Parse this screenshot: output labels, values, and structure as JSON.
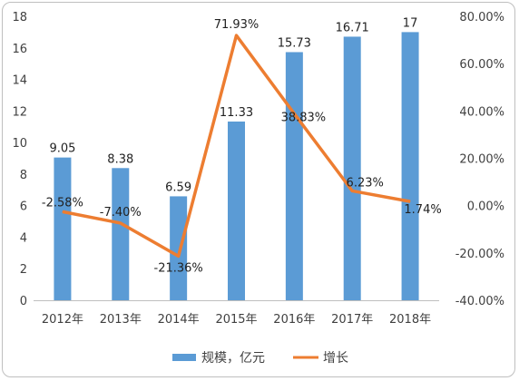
{
  "chart_data": {
    "type": "bar+line",
    "categories": [
      "2012年",
      "2013年",
      "2014年",
      "2015年",
      "2016年",
      "2017年",
      "2018年"
    ],
    "series": [
      {
        "name": "规模，亿元",
        "type": "bar",
        "axis": "left",
        "color": "#5b9bd5",
        "values": [
          9.05,
          8.38,
          6.59,
          11.33,
          15.73,
          16.71,
          17
        ],
        "labels": [
          "9.05",
          "8.38",
          "6.59",
          "11.33",
          "15.73",
          "16.71",
          "17"
        ]
      },
      {
        "name": "增长",
        "type": "line",
        "axis": "right",
        "color": "#ed7d31",
        "values": [
          -2.58,
          -7.4,
          -21.36,
          71.93,
          38.83,
          6.23,
          1.74
        ],
        "labels": [
          "-2.58%",
          "-7.40%",
          "-21.36%",
          "71.93%",
          "38.83%",
          "6.23%",
          "1.74%"
        ]
      }
    ],
    "y_left": {
      "min": 0,
      "max": 18,
      "ticks": [
        "0",
        "2",
        "4",
        "6",
        "8",
        "10",
        "12",
        "14",
        "16",
        "18"
      ]
    },
    "y_right": {
      "min": -40,
      "max": 80,
      "ticks": [
        "-40.00%",
        "-20.00%",
        "0.00%",
        "20.00%",
        "40.00%",
        "60.00%",
        "80.00%"
      ]
    },
    "grid": false,
    "legend_position": "bottom"
  }
}
